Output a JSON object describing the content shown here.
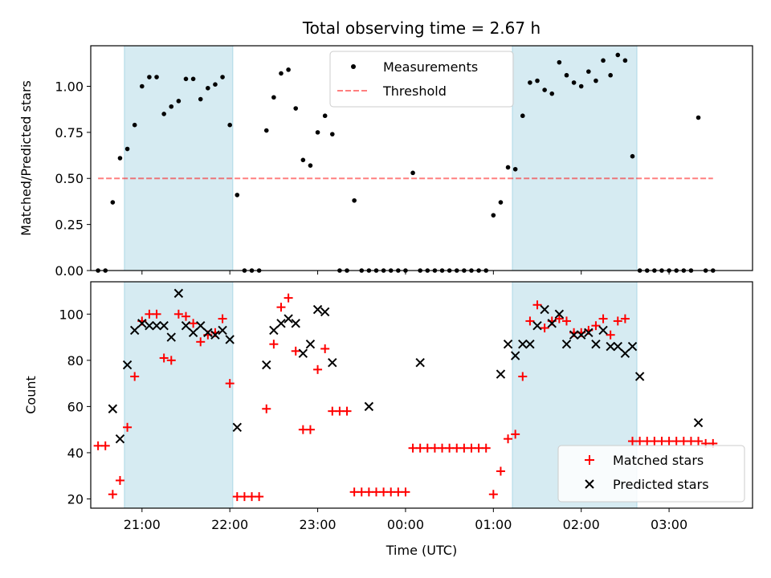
{
  "chart_data": [
    {
      "type": "scatter",
      "title": "Total observing time = 2.67 h",
      "ylabel": "Matched/Predicted stars",
      "ylim": [
        0,
        1.22
      ],
      "yticks": [
        "0.00",
        "0.25",
        "0.50",
        "0.75",
        "1.00"
      ],
      "xlim": [
        "20:25",
        "03:57"
      ],
      "threshold": 0.5,
      "threshold_range": [
        "20:30",
        "03:30"
      ],
      "shaded_intervals": [
        [
          "20:48",
          "22:02"
        ],
        [
          "01:13",
          "02:38"
        ]
      ],
      "legend": {
        "position": "top-center",
        "entries": [
          "Measurements",
          "Threshold"
        ]
      },
      "series": [
        {
          "name": "Measurements",
          "color": "#000000",
          "marker": "dot",
          "x": [
            "20:30",
            "20:35",
            "20:40",
            "20:45",
            "20:50",
            "20:55",
            "21:00",
            "21:05",
            "21:10",
            "21:15",
            "21:20",
            "21:25",
            "21:30",
            "21:35",
            "21:40",
            "21:45",
            "21:50",
            "21:55",
            "22:00",
            "22:05",
            "22:10",
            "22:15",
            "22:20",
            "22:25",
            "22:30",
            "22:35",
            "22:40",
            "22:45",
            "22:50",
            "22:55",
            "23:00",
            "23:05",
            "23:10",
            "23:15",
            "23:20",
            "23:25",
            "23:30",
            "23:35",
            "23:40",
            "23:45",
            "23:50",
            "23:55",
            "00:00",
            "00:05",
            "00:10",
            "00:15",
            "00:20",
            "00:25",
            "00:30",
            "00:35",
            "00:40",
            "00:45",
            "00:50",
            "00:55",
            "01:00",
            "01:05",
            "01:10",
            "01:15",
            "01:20",
            "01:25",
            "01:30",
            "01:35",
            "01:40",
            "01:45",
            "01:50",
            "01:55",
            "02:00",
            "02:05",
            "02:10",
            "02:15",
            "02:20",
            "02:25",
            "02:30",
            "02:35",
            "02:40",
            "02:45",
            "02:50",
            "02:55",
            "03:00",
            "03:05",
            "03:10",
            "03:15",
            "03:20",
            "03:25",
            "03:30"
          ],
          "y": [
            0,
            0,
            0.37,
            0.61,
            0.66,
            0.79,
            1.0,
            1.05,
            1.05,
            0.85,
            0.89,
            0.92,
            1.04,
            1.04,
            0.93,
            0.99,
            1.01,
            1.05,
            0.79,
            0.41,
            0,
            0,
            0,
            0.76,
            0.94,
            1.07,
            1.09,
            0.88,
            0.6,
            0.57,
            0.75,
            0.84,
            0.74,
            0,
            0,
            0.38,
            0,
            0,
            0,
            0,
            0,
            0,
            0,
            0.53,
            0,
            0,
            0,
            0,
            0,
            0,
            0,
            0,
            0,
            0,
            0.3,
            0.37,
            0.56,
            0.55,
            0.84,
            1.02,
            1.03,
            0.98,
            0.96,
            1.13,
            1.06,
            1.02,
            1.0,
            1.08,
            1.03,
            1.14,
            1.06,
            1.17,
            1.14,
            0.62,
            0,
            0,
            0,
            0,
            0,
            0,
            0,
            0,
            0.83,
            0,
            0
          ]
        }
      ]
    },
    {
      "type": "scatter",
      "xlabel": "Time (UTC)",
      "ylabel": "Count",
      "ylim": [
        16,
        114
      ],
      "yticks": [
        "20",
        "40",
        "60",
        "80",
        "100"
      ],
      "xlim": [
        "20:25",
        "03:57"
      ],
      "xticks": [
        "21:00",
        "22:00",
        "23:00",
        "00:00",
        "01:00",
        "02:00",
        "03:00"
      ],
      "shaded_intervals": [
        [
          "20:48",
          "22:02"
        ],
        [
          "01:13",
          "02:38"
        ]
      ],
      "legend": {
        "position": "bottom-right",
        "entries": [
          "Matched stars",
          "Predicted stars"
        ]
      },
      "series": [
        {
          "name": "Matched stars",
          "color": "#ff0000",
          "marker": "plus",
          "x": [
            "20:30",
            "20:35",
            "20:40",
            "20:45",
            "20:50",
            "20:55",
            "21:00",
            "21:05",
            "21:10",
            "21:15",
            "21:20",
            "21:25",
            "21:30",
            "21:35",
            "21:40",
            "21:45",
            "21:50",
            "21:55",
            "22:00",
            "22:05",
            "22:10",
            "22:15",
            "22:20",
            "22:25",
            "22:30",
            "22:35",
            "22:40",
            "22:45",
            "22:50",
            "22:55",
            "23:00",
            "23:05",
            "23:10",
            "23:15",
            "23:20",
            "23:25",
            "23:30",
            "23:35",
            "23:40",
            "23:45",
            "23:50",
            "23:55",
            "00:00",
            "00:05",
            "00:10",
            "00:15",
            "00:20",
            "00:25",
            "00:30",
            "00:35",
            "00:40",
            "00:45",
            "00:50",
            "00:55",
            "01:00",
            "01:05",
            "01:10",
            "01:15",
            "01:20",
            "01:25",
            "01:30",
            "01:35",
            "01:40",
            "01:45",
            "01:50",
            "01:55",
            "02:00",
            "02:05",
            "02:10",
            "02:15",
            "02:20",
            "02:25",
            "02:30",
            "02:35",
            "02:40",
            "02:45",
            "02:50",
            "02:55",
            "03:00",
            "03:05",
            "03:10",
            "03:15",
            "03:20",
            "03:25",
            "03:30"
          ],
          "y": [
            43,
            43,
            22,
            28,
            51,
            73,
            97,
            100,
            100,
            81,
            80,
            100,
            99,
            96,
            88,
            91,
            92,
            98,
            70,
            21,
            21,
            21,
            21,
            59,
            87,
            103,
            107,
            84,
            50,
            50,
            76,
            85,
            58,
            58,
            58,
            23,
            23,
            23,
            23,
            23,
            23,
            23,
            23,
            42,
            42,
            42,
            42,
            42,
            42,
            42,
            42,
            42,
            42,
            42,
            22,
            32,
            46,
            48,
            73,
            97,
            104,
            94,
            97,
            98,
            97,
            92,
            92,
            93,
            95,
            98,
            91,
            97,
            98,
            45,
            45,
            45,
            45,
            45,
            45,
            45,
            45,
            45,
            45,
            44,
            44
          ]
        },
        {
          "name": "Predicted stars",
          "color": "#000000",
          "marker": "x",
          "x": [
            "20:40",
            "20:45",
            "20:50",
            "20:55",
            "21:00",
            "21:05",
            "21:10",
            "21:15",
            "21:20",
            "21:25",
            "21:30",
            "21:35",
            "21:40",
            "21:45",
            "21:50",
            "21:55",
            "22:00",
            "22:05",
            "22:25",
            "22:30",
            "22:35",
            "22:40",
            "22:45",
            "22:50",
            "22:55",
            "23:00",
            "23:05",
            "23:10",
            "23:35",
            "00:10",
            "01:05",
            "01:10",
            "01:15",
            "01:20",
            "01:25",
            "01:30",
            "01:35",
            "01:40",
            "01:45",
            "01:50",
            "01:55",
            "02:00",
            "02:05",
            "02:10",
            "02:15",
            "02:20",
            "02:25",
            "02:30",
            "02:35",
            "02:40",
            "03:20"
          ],
          "y": [
            59,
            46,
            78,
            93,
            96,
            95,
            95,
            95,
            90,
            109,
            95,
            92,
            95,
            92,
            91,
            93,
            89,
            51,
            78,
            93,
            96,
            98,
            96,
            83,
            87,
            102,
            101,
            79,
            60,
            79,
            74,
            87,
            82,
            87,
            87,
            95,
            102,
            96,
            100,
            87,
            91,
            91,
            92,
            87,
            93,
            86,
            86,
            83,
            86,
            73,
            53
          ]
        }
      ]
    }
  ]
}
